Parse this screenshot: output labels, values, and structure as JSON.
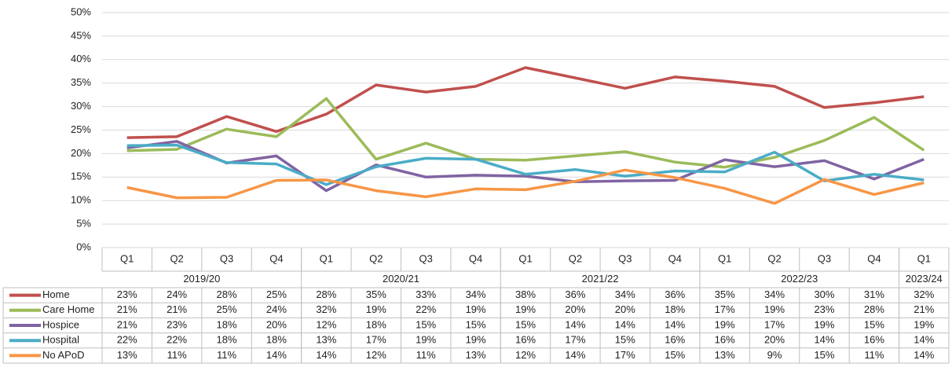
{
  "chart_data": {
    "type": "line",
    "groups": [
      {
        "label": "2019/20",
        "categories": [
          "Q1",
          "Q2",
          "Q3",
          "Q4"
        ]
      },
      {
        "label": "2020/21",
        "categories": [
          "Q1",
          "Q2",
          "Q3",
          "Q4"
        ]
      },
      {
        "label": "2021/22",
        "categories": [
          "Q1",
          "Q2",
          "Q3",
          "Q4"
        ]
      },
      {
        "label": "2022/23",
        "categories": [
          "Q1",
          "Q2",
          "Q3",
          "Q4"
        ]
      },
      {
        "label": "2023/24",
        "categories": [
          "Q1"
        ]
      }
    ],
    "ylim": [
      0,
      50
    ],
    "yticks": [
      {
        "value": 0,
        "label": "0%"
      },
      {
        "value": 5,
        "label": "5%"
      },
      {
        "value": 10,
        "label": "10%"
      },
      {
        "value": 15,
        "label": "15%"
      },
      {
        "value": 20,
        "label": "20%"
      },
      {
        "value": 25,
        "label": "25%"
      },
      {
        "value": 30,
        "label": "30%"
      },
      {
        "value": 35,
        "label": "35%"
      },
      {
        "value": 40,
        "label": "40%"
      },
      {
        "value": 45,
        "label": "45%"
      },
      {
        "value": 50,
        "label": "50%"
      }
    ],
    "grid": true,
    "series": [
      {
        "name": "Home",
        "color": "#c0504d",
        "values": [
          23.4,
          23.6,
          27.9,
          24.7,
          28.4,
          34.6,
          33.1,
          34.3,
          38.3,
          36.1,
          33.9,
          36.3,
          35.4,
          34.3,
          29.8,
          30.8,
          32.1
        ],
        "value_labels": [
          "23%",
          "24%",
          "28%",
          "25%",
          "28%",
          "35%",
          "33%",
          "34%",
          "38%",
          "36%",
          "34%",
          "36%",
          "35%",
          "34%",
          "30%",
          "31%",
          "32%"
        ]
      },
      {
        "name": "Care Home",
        "color": "#9bbb59",
        "values": [
          20.6,
          20.9,
          25.2,
          23.6,
          31.7,
          18.8,
          22.2,
          18.8,
          18.6,
          19.5,
          20.4,
          18.2,
          17.1,
          19.2,
          22.8,
          27.7,
          20.7
        ],
        "value_labels": [
          "21%",
          "21%",
          "25%",
          "24%",
          "32%",
          "19%",
          "22%",
          "19%",
          "19%",
          "20%",
          "20%",
          "18%",
          "17%",
          "19%",
          "23%",
          "28%",
          "21%"
        ]
      },
      {
        "name": "Hospice",
        "color": "#8064a2",
        "values": [
          21.2,
          22.6,
          18.0,
          19.5,
          12.1,
          17.6,
          15.0,
          15.4,
          15.2,
          14.0,
          14.2,
          14.3,
          18.7,
          17.2,
          18.5,
          14.6,
          18.8
        ],
        "value_labels": [
          "21%",
          "23%",
          "18%",
          "20%",
          "12%",
          "18%",
          "15%",
          "15%",
          "15%",
          "14%",
          "14%",
          "14%",
          "19%",
          "17%",
          "19%",
          "15%",
          "19%"
        ]
      },
      {
        "name": "Hospital",
        "color": "#4bacc6",
        "values": [
          21.7,
          21.8,
          18.1,
          17.8,
          13.4,
          17.2,
          19.0,
          18.8,
          15.6,
          16.6,
          15.2,
          16.3,
          16.1,
          20.3,
          14.2,
          15.6,
          14.4
        ],
        "value_labels": [
          "22%",
          "22%",
          "18%",
          "18%",
          "13%",
          "17%",
          "19%",
          "19%",
          "16%",
          "17%",
          "15%",
          "16%",
          "16%",
          "20%",
          "14%",
          "16%",
          "14%"
        ]
      },
      {
        "name": "No APoD",
        "color": "#f79646",
        "values": [
          12.8,
          10.6,
          10.7,
          14.3,
          14.4,
          12.1,
          10.8,
          12.5,
          12.3,
          14.1,
          16.5,
          14.9,
          12.6,
          9.4,
          14.5,
          11.3,
          13.8
        ],
        "value_labels": [
          "13%",
          "11%",
          "11%",
          "14%",
          "14%",
          "12%",
          "11%",
          "13%",
          "12%",
          "14%",
          "17%",
          "15%",
          "13%",
          "9%",
          "15%",
          "11%",
          "14%"
        ]
      }
    ]
  }
}
